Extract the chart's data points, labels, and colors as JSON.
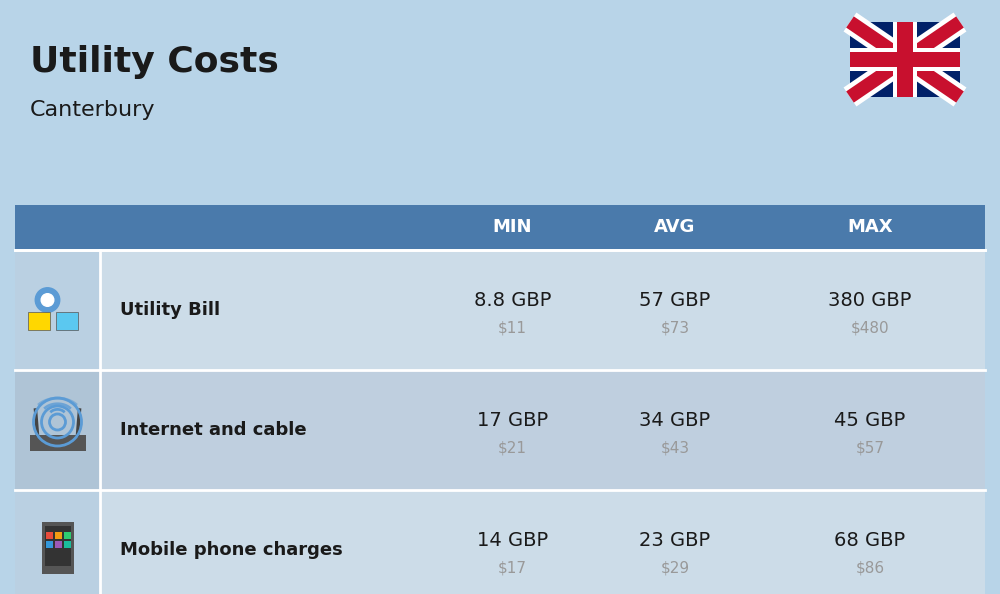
{
  "title": "Utility Costs",
  "subtitle": "Canterbury",
  "background_color": "#b8d4e8",
  "header_color": "#4a7aab",
  "header_text_color": "#ffffff",
  "row_color_1": "#c8dce f",
  "row_color_2": "#bdd0e3",
  "icon_col_color_1": "#bdd4e8",
  "icon_col_color_2": "#b0c8dc",
  "text_color": "#1a1a1a",
  "subtext_color": "#999999",
  "rows": [
    {
      "label": "Utility Bill",
      "min_gbp": "8.8 GBP",
      "min_usd": "$11",
      "avg_gbp": "57 GBP",
      "avg_usd": "$73",
      "max_gbp": "380 GBP",
      "max_usd": "$480"
    },
    {
      "label": "Internet and cable",
      "min_gbp": "17 GBP",
      "min_usd": "$21",
      "avg_gbp": "34 GBP",
      "avg_usd": "$43",
      "max_gbp": "45 GBP",
      "max_usd": "$57"
    },
    {
      "label": "Mobile phone charges",
      "min_gbp": "14 GBP",
      "min_usd": "$17",
      "avg_gbp": "23 GBP",
      "avg_usd": "$29",
      "max_gbp": "68 GBP",
      "max_usd": "$86"
    }
  ],
  "title_fontsize": 26,
  "subtitle_fontsize": 16,
  "header_fontsize": 13,
  "label_fontsize": 13,
  "value_fontsize": 14,
  "subvalue_fontsize": 11
}
